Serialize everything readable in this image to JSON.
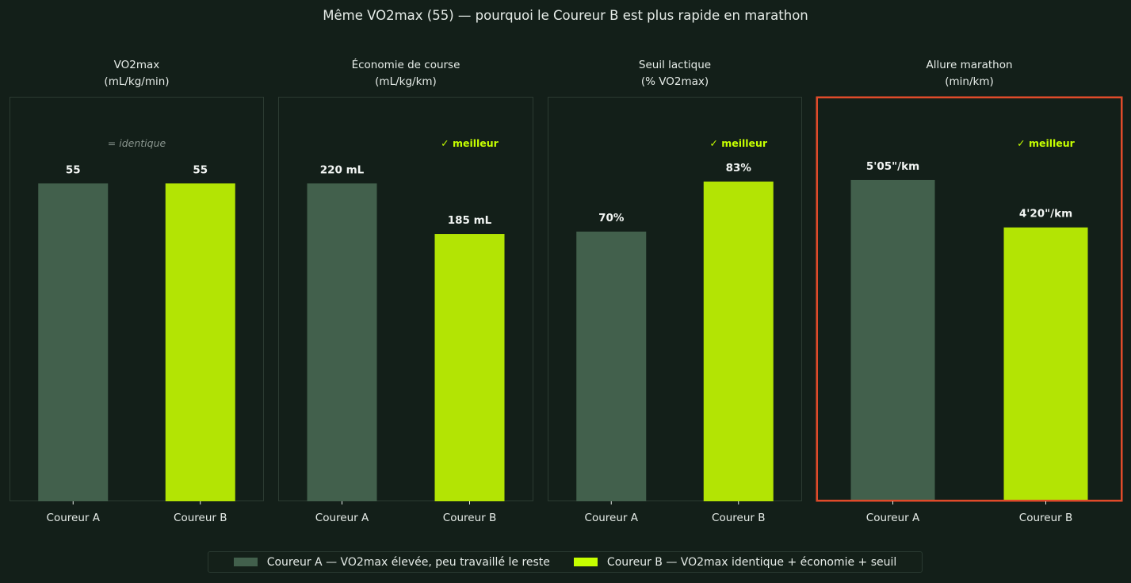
{
  "title": "Même VO2max (55) — pourquoi le Coureur B est plus rapide en marathon",
  "colors": {
    "background": "#131f19",
    "coureur_a": "#42604c",
    "coureur_b": "#b3e404",
    "highlight_border": "#e04b2a",
    "panel_border": "#2c3b32",
    "note_good": "#c6ff00",
    "note_same": "#8a968f"
  },
  "chart_data": [
    {
      "type": "bar",
      "title": [
        "VO2max",
        "(mL/kg/min)"
      ],
      "categories": [
        "Coureur A",
        "Coureur B"
      ],
      "values": [
        55,
        55
      ],
      "value_labels": [
        "55",
        "55"
      ],
      "ylim": [
        0,
        70
      ],
      "note": "= identique",
      "note_style": "same",
      "highlighted": false
    },
    {
      "type": "bar",
      "title": [
        "Économie de course",
        "(mL/kg/km)"
      ],
      "categories": [
        "Coureur A",
        "Coureur B"
      ],
      "values": [
        220,
        185
      ],
      "value_labels": [
        "220 mL",
        "185 mL"
      ],
      "ylim": [
        0,
        280
      ],
      "note": "✓ meilleur",
      "note_style": "good",
      "highlighted": false
    },
    {
      "type": "bar",
      "title": [
        "Seuil lactique",
        "(% VO2max)"
      ],
      "categories": [
        "Coureur A",
        "Coureur B"
      ],
      "values": [
        70,
        83
      ],
      "value_labels": [
        "70%",
        "83%"
      ],
      "ylim": [
        0,
        105
      ],
      "note": "✓ meilleur",
      "note_style": "good",
      "highlighted": false
    },
    {
      "type": "bar",
      "title": [
        "Allure marathon",
        "(min/km)"
      ],
      "categories": [
        "Coureur A",
        "Coureur B"
      ],
      "values": [
        5.083,
        4.333
      ],
      "value_labels": [
        "5'05\"/km",
        "4'20\"/km"
      ],
      "ylim": [
        0,
        6.4
      ],
      "note": "✓ meilleur",
      "note_style": "good",
      "highlighted": true
    }
  ],
  "legend": [
    {
      "label": "Coureur A — VO2max élevée, peu travaillé le reste",
      "color": "#42604c"
    },
    {
      "label": "Coureur B — VO2max identique + économie + seuil",
      "color": "#c6ff00"
    }
  ]
}
